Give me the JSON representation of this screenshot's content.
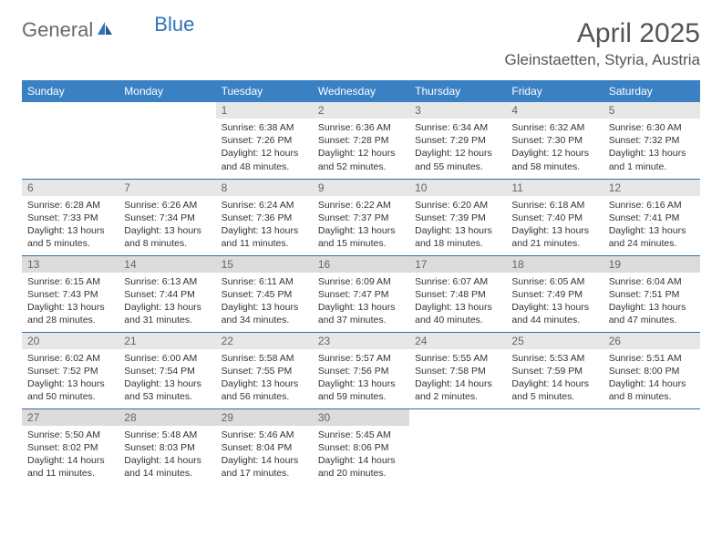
{
  "brand": {
    "text1": "General",
    "text2": "Blue"
  },
  "title": "April 2025",
  "location": "Gleinstaetten, Styria, Austria",
  "colors": {
    "header_bg": "#3a81c4",
    "header_text": "#ffffff",
    "daynum_bg": "#e7e7e7",
    "daynum_bg_alt": "#dcdcdc",
    "row_divider": "#3a6b9a",
    "brand_gray": "#6b6b6b",
    "brand_blue": "#2f72b8"
  },
  "weekdays": [
    "Sunday",
    "Monday",
    "Tuesday",
    "Wednesday",
    "Thursday",
    "Friday",
    "Saturday"
  ],
  "start_weekday_index": 2,
  "days": [
    {
      "n": 1,
      "sunrise": "6:38 AM",
      "sunset": "7:26 PM",
      "daylight": "12 hours and 48 minutes."
    },
    {
      "n": 2,
      "sunrise": "6:36 AM",
      "sunset": "7:28 PM",
      "daylight": "12 hours and 52 minutes."
    },
    {
      "n": 3,
      "sunrise": "6:34 AM",
      "sunset": "7:29 PM",
      "daylight": "12 hours and 55 minutes."
    },
    {
      "n": 4,
      "sunrise": "6:32 AM",
      "sunset": "7:30 PM",
      "daylight": "12 hours and 58 minutes."
    },
    {
      "n": 5,
      "sunrise": "6:30 AM",
      "sunset": "7:32 PM",
      "daylight": "13 hours and 1 minute."
    },
    {
      "n": 6,
      "sunrise": "6:28 AM",
      "sunset": "7:33 PM",
      "daylight": "13 hours and 5 minutes."
    },
    {
      "n": 7,
      "sunrise": "6:26 AM",
      "sunset": "7:34 PM",
      "daylight": "13 hours and 8 minutes."
    },
    {
      "n": 8,
      "sunrise": "6:24 AM",
      "sunset": "7:36 PM",
      "daylight": "13 hours and 11 minutes."
    },
    {
      "n": 9,
      "sunrise": "6:22 AM",
      "sunset": "7:37 PM",
      "daylight": "13 hours and 15 minutes."
    },
    {
      "n": 10,
      "sunrise": "6:20 AM",
      "sunset": "7:39 PM",
      "daylight": "13 hours and 18 minutes."
    },
    {
      "n": 11,
      "sunrise": "6:18 AM",
      "sunset": "7:40 PM",
      "daylight": "13 hours and 21 minutes."
    },
    {
      "n": 12,
      "sunrise": "6:16 AM",
      "sunset": "7:41 PM",
      "daylight": "13 hours and 24 minutes."
    },
    {
      "n": 13,
      "sunrise": "6:15 AM",
      "sunset": "7:43 PM",
      "daylight": "13 hours and 28 minutes."
    },
    {
      "n": 14,
      "sunrise": "6:13 AM",
      "sunset": "7:44 PM",
      "daylight": "13 hours and 31 minutes."
    },
    {
      "n": 15,
      "sunrise": "6:11 AM",
      "sunset": "7:45 PM",
      "daylight": "13 hours and 34 minutes."
    },
    {
      "n": 16,
      "sunrise": "6:09 AM",
      "sunset": "7:47 PM",
      "daylight": "13 hours and 37 minutes."
    },
    {
      "n": 17,
      "sunrise": "6:07 AM",
      "sunset": "7:48 PM",
      "daylight": "13 hours and 40 minutes."
    },
    {
      "n": 18,
      "sunrise": "6:05 AM",
      "sunset": "7:49 PM",
      "daylight": "13 hours and 44 minutes."
    },
    {
      "n": 19,
      "sunrise": "6:04 AM",
      "sunset": "7:51 PM",
      "daylight": "13 hours and 47 minutes."
    },
    {
      "n": 20,
      "sunrise": "6:02 AM",
      "sunset": "7:52 PM",
      "daylight": "13 hours and 50 minutes."
    },
    {
      "n": 21,
      "sunrise": "6:00 AM",
      "sunset": "7:54 PM",
      "daylight": "13 hours and 53 minutes."
    },
    {
      "n": 22,
      "sunrise": "5:58 AM",
      "sunset": "7:55 PM",
      "daylight": "13 hours and 56 minutes."
    },
    {
      "n": 23,
      "sunrise": "5:57 AM",
      "sunset": "7:56 PM",
      "daylight": "13 hours and 59 minutes."
    },
    {
      "n": 24,
      "sunrise": "5:55 AM",
      "sunset": "7:58 PM",
      "daylight": "14 hours and 2 minutes."
    },
    {
      "n": 25,
      "sunrise": "5:53 AM",
      "sunset": "7:59 PM",
      "daylight": "14 hours and 5 minutes."
    },
    {
      "n": 26,
      "sunrise": "5:51 AM",
      "sunset": "8:00 PM",
      "daylight": "14 hours and 8 minutes."
    },
    {
      "n": 27,
      "sunrise": "5:50 AM",
      "sunset": "8:02 PM",
      "daylight": "14 hours and 11 minutes."
    },
    {
      "n": 28,
      "sunrise": "5:48 AM",
      "sunset": "8:03 PM",
      "daylight": "14 hours and 14 minutes."
    },
    {
      "n": 29,
      "sunrise": "5:46 AM",
      "sunset": "8:04 PM",
      "daylight": "14 hours and 17 minutes."
    },
    {
      "n": 30,
      "sunrise": "5:45 AM",
      "sunset": "8:06 PM",
      "daylight": "14 hours and 20 minutes."
    }
  ],
  "labels": {
    "sunrise": "Sunrise:",
    "sunset": "Sunset:",
    "daylight": "Daylight:"
  }
}
